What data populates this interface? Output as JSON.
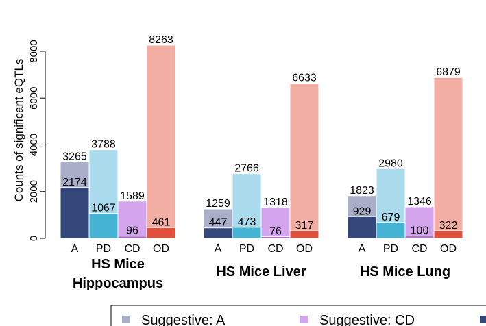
{
  "chart_data": {
    "type": "bar",
    "ylabel": "Counts of significant eQTLs",
    "ylim": [
      0,
      8263
    ],
    "yticks": [
      0,
      2000,
      4000,
      6000,
      8000
    ],
    "categories": [
      "A",
      "PD",
      "CD",
      "OD"
    ],
    "groups": [
      {
        "name": "HS Mice Hippocampus",
        "suggestive": [
          3265,
          3788,
          1589,
          8263
        ],
        "significant": [
          2174,
          1067,
          96,
          461
        ]
      },
      {
        "name": "HS Mice Liver",
        "suggestive": [
          1259,
          2766,
          1318,
          6633
        ],
        "significant": [
          447,
          473,
          76,
          317
        ]
      },
      {
        "name": "HS Mice Lung",
        "suggestive": [
          1823,
          2980,
          1346,
          6879
        ],
        "significant": [
          929,
          679,
          100,
          322
        ]
      }
    ],
    "colors": {
      "suggestive": [
        "#a9aec9",
        "#aadced",
        "#d4a5ec",
        "#f3aea3"
      ],
      "significant": [
        "#34477a",
        "#45b4d2",
        "#b268d4",
        "#e0503a"
      ]
    },
    "legend": {
      "position": "bottom",
      "entries": [
        "Suggestive: A",
        "Suggestive: CD"
      ]
    },
    "grid": false
  }
}
